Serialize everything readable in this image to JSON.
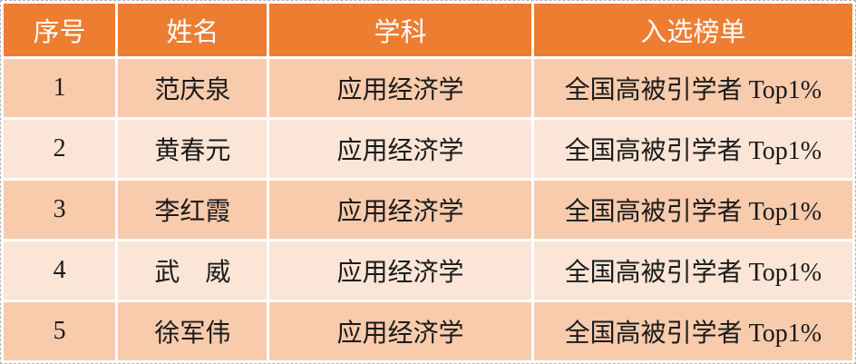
{
  "table": {
    "columns": [
      {
        "key": "index",
        "label": "序号"
      },
      {
        "key": "name",
        "label": "姓名"
      },
      {
        "key": "subject",
        "label": "学科"
      },
      {
        "key": "list",
        "label": "入选榜单"
      }
    ],
    "rows": [
      {
        "index": "1",
        "name": "范庆泉",
        "subject": "应用经济学",
        "list": "全国高被引学者 Top1%"
      },
      {
        "index": "2",
        "name": "黄春元",
        "subject": "应用经济学",
        "list": "全国高被引学者 Top1%"
      },
      {
        "index": "3",
        "name": "李红霞",
        "subject": "应用经济学",
        "list": "全国高被引学者 Top1%"
      },
      {
        "index": "4",
        "name": "武　威",
        "subject": "应用经济学",
        "list": "全国高被引学者 Top1%"
      },
      {
        "index": "5",
        "name": "徐军伟",
        "subject": "应用经济学",
        "list": "全国高被引学者 Top1%"
      }
    ],
    "colors": {
      "header_bg": "#ED7D31",
      "header_text": "#FFFFFF",
      "row_odd_bg": "#F8CBAD",
      "row_even_bg": "#FBE5D6",
      "cell_text": "#1A1A1A",
      "grid_border": "#FFFFFF",
      "outer_dashed_border": "#B3B3B3"
    }
  }
}
